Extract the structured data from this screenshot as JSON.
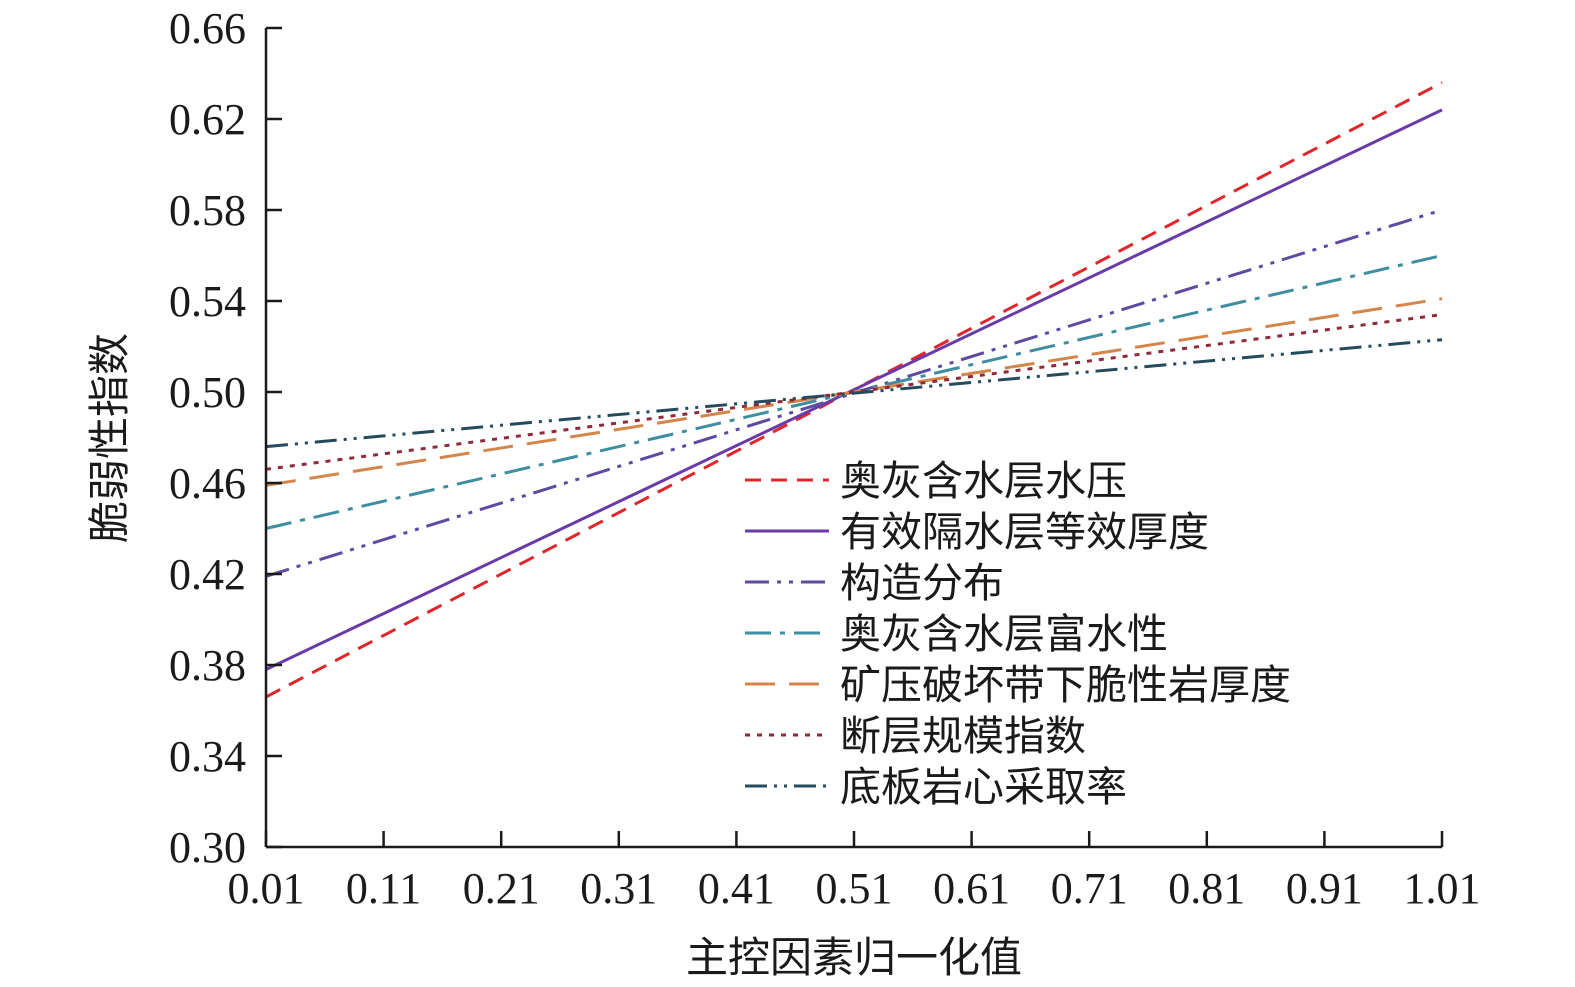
{
  "chart_data": {
    "type": "line",
    "xlabel": "主控因素归一化值",
    "ylabel": "脆弱性指数",
    "xlim": [
      0.01,
      1.01
    ],
    "ylim": [
      0.3,
      0.66
    ],
    "x_ticks": [
      "0.01",
      "0.11",
      "0.21",
      "0.31",
      "0.41",
      "0.51",
      "0.61",
      "0.71",
      "0.81",
      "0.91",
      "1.01"
    ],
    "y_ticks": [
      "0.30",
      "0.34",
      "0.38",
      "0.42",
      "0.46",
      "0.50",
      "0.54",
      "0.58",
      "0.62",
      "0.66"
    ],
    "grid": false,
    "legend_position": "lower-right",
    "series": [
      {
        "name": "奥灰含水层水压",
        "x": [
          0.01,
          1.01
        ],
        "values": [
          0.366,
          0.636
        ],
        "color": "#e0262a",
        "dash": "16,10",
        "width": 3
      },
      {
        "name": "有效隔水层等效厚度",
        "x": [
          0.01,
          1.01
        ],
        "values": [
          0.378,
          0.624
        ],
        "color": "#6a3aa8",
        "dash": "",
        "width": 3
      },
      {
        "name": "构造分布",
        "x": [
          0.01,
          1.01
        ],
        "values": [
          0.419,
          0.58
        ],
        "color": "#5e4a9e",
        "dash": "24,8,4,8,4,8",
        "width": 3
      },
      {
        "name": "奥灰含水层富水性",
        "x": [
          0.01,
          1.01
        ],
        "values": [
          0.44,
          0.56
        ],
        "color": "#3f8ea0",
        "dash": "26,9,5,9",
        "width": 3
      },
      {
        "name": "矿压破坏带下脆性岩厚度",
        "x": [
          0.01,
          1.01
        ],
        "values": [
          0.459,
          0.541
        ],
        "color": "#d4864a",
        "dash": "30,14",
        "width": 3
      },
      {
        "name": "断层规模指数",
        "x": [
          0.01,
          1.01
        ],
        "values": [
          0.466,
          0.534
        ],
        "color": "#8e2a3a",
        "dash": "5,7",
        "width": 3
      },
      {
        "name": "底板岩心采取率",
        "x": [
          0.01,
          1.01
        ],
        "values": [
          0.476,
          0.523
        ],
        "color": "#244a5e",
        "dash": "22,7,3,7,3,7",
        "width": 3
      }
    ]
  }
}
